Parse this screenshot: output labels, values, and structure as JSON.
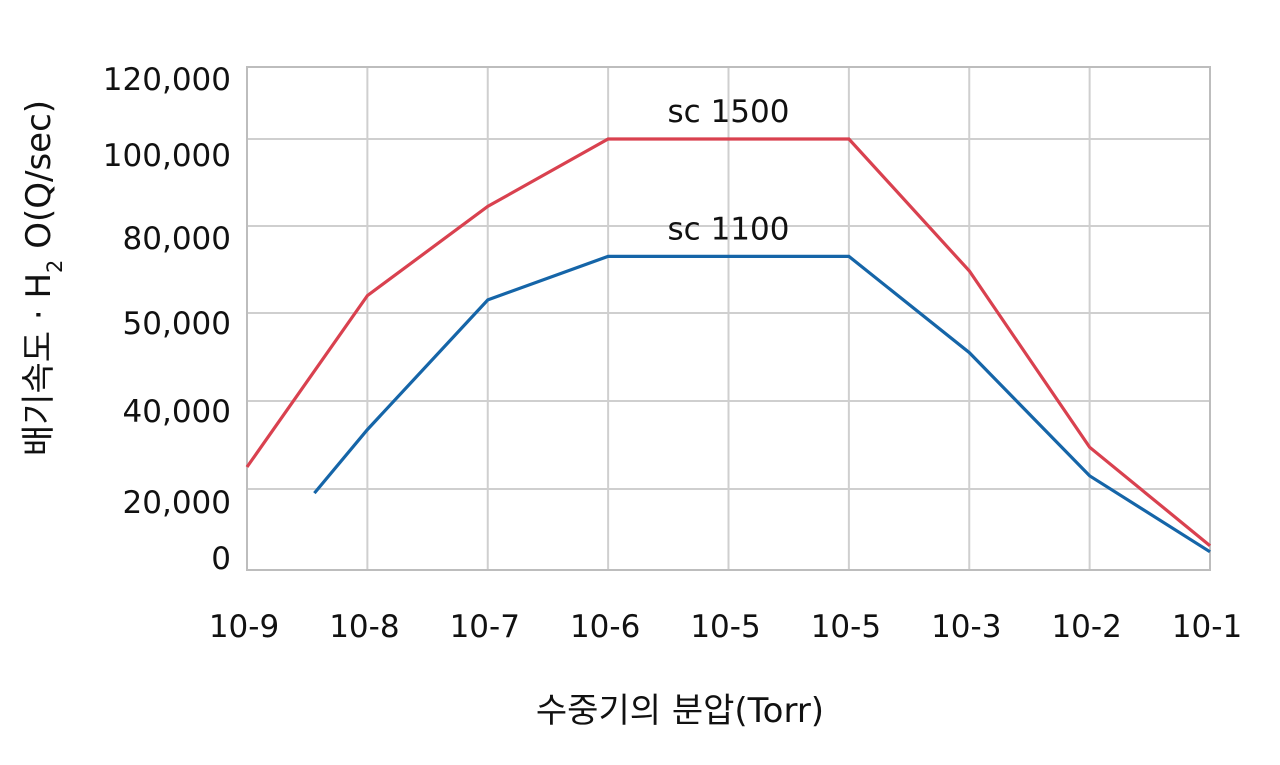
{
  "chart_data": {
    "type": "line",
    "xlabel": "수중기의 분압(Torr)",
    "ylabel": "배기속도 · H₂ O(Q/sec)",
    "ylabel_parts": {
      "before": "배기속도 · H",
      "sub": "2",
      "after": " O(Q/sec)"
    },
    "categories": [
      "10-9",
      "10-8",
      "10-7",
      "10-6",
      "10-5",
      "10-5",
      "10-3",
      "10-2",
      "10-1"
    ],
    "y_ticks": [
      "0",
      "20,000",
      "40,000",
      "50,000",
      "80,000",
      "100,000",
      "120,000"
    ],
    "grid": true,
    "series": [
      {
        "name": "sc 1500",
        "color": "#d9414f",
        "points": [
          [
            0,
            25000
          ],
          [
            1,
            56000
          ],
          [
            2,
            84500
          ],
          [
            3,
            100000
          ],
          [
            4,
            100000
          ],
          [
            5,
            100000
          ],
          [
            6,
            64500
          ],
          [
            7,
            29500
          ],
          [
            8,
            6000
          ]
        ]
      },
      {
        "name": "sc 1100",
        "color": "#1565a8",
        "points": [
          [
            0.56,
            19000
          ],
          [
            1,
            33500
          ],
          [
            2,
            54500
          ],
          [
            3,
            69500
          ],
          [
            4,
            69500
          ],
          [
            5,
            69500
          ],
          [
            6,
            45500
          ],
          [
            7,
            23000
          ],
          [
            8,
            4500
          ]
        ]
      }
    ]
  }
}
